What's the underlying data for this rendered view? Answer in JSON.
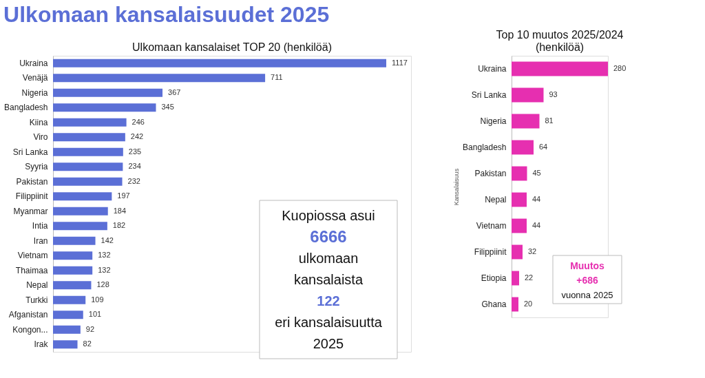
{
  "chart_data": [
    {
      "type": "bar",
      "orientation": "horizontal",
      "title": "Ulkomaan kansalaisuudet 2025",
      "subtitle": "Ulkomaan kansalaiset TOP 20 (henkilöä)",
      "categories": [
        "Ukraina",
        "Venäjä",
        "Nigeria",
        "Bangladesh",
        "Kiina",
        "Viro",
        "Sri Lanka",
        "Syyria",
        "Pakistan",
        "Filippiinit",
        "Myanmar",
        "Intia",
        "Iran",
        "Vietnam",
        "Thaimaa",
        "Nepal",
        "Turkki",
        "Afganistan",
        "Kongon...",
        "Irak"
      ],
      "values": [
        1117,
        711,
        367,
        345,
        246,
        242,
        235,
        234,
        232,
        197,
        184,
        182,
        142,
        132,
        132,
        128,
        109,
        101,
        92,
        82
      ],
      "color": "#5b6fd6",
      "data_labels": true,
      "annotations": [
        "Kuopiossa asui",
        "6666",
        "ulkomaan",
        "kansalaista",
        "122",
        "eri kansalaisuutta",
        "2025"
      ]
    },
    {
      "type": "bar",
      "orientation": "horizontal",
      "title": "Top 10 muutos 2025/2024 (henkilöä)",
      "ylabel": "Kansalaisuus",
      "categories": [
        "Ukraina",
        "Sri Lanka",
        "Nigeria",
        "Bangladesh",
        "Pakistan",
        "Nepal",
        "Vietnam",
        "Filippiinit",
        "Etiopia",
        "Ghana"
      ],
      "values": [
        280,
        93,
        81,
        64,
        45,
        44,
        44,
        32,
        22,
        20
      ],
      "color": "#e62fb0",
      "data_labels": true,
      "annotations": [
        "Muutos",
        "+686",
        "vuonna 2025"
      ]
    }
  ]
}
